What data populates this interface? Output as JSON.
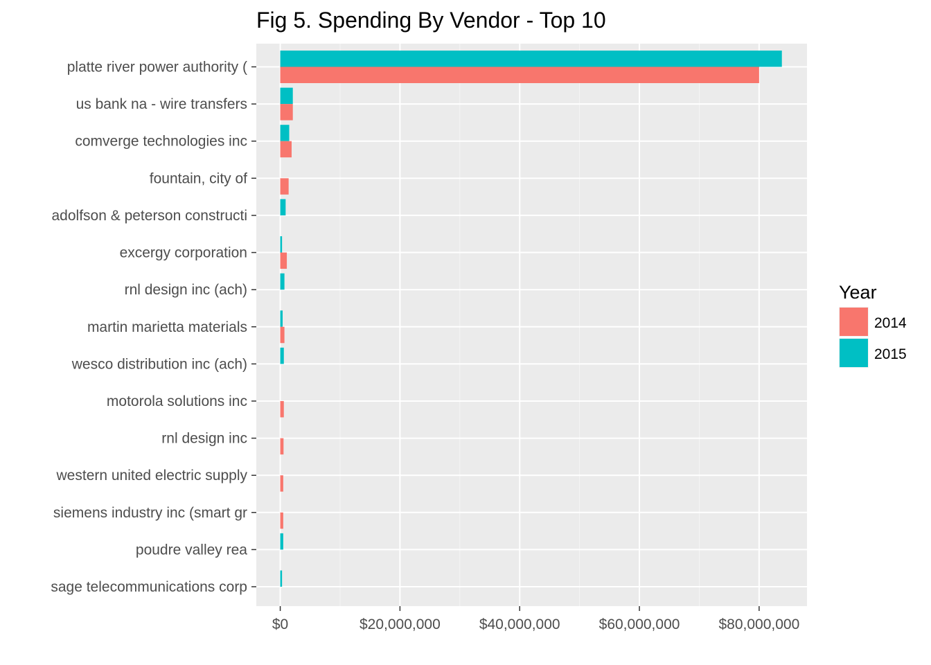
{
  "chart_data": {
    "type": "bar",
    "orientation": "horizontal",
    "title": "Fig 5. Spending By Vendor - Top 10",
    "xlabel": "",
    "ylabel": "",
    "xlim": [
      -4000000,
      88000000
    ],
    "x_ticks": [
      0,
      20000000,
      40000000,
      60000000,
      80000000
    ],
    "x_tick_labels": [
      "$0",
      "$20,000,000",
      "$40,000,000",
      "$60,000,000",
      "$80,000,000"
    ],
    "grid": true,
    "legend_position": "right",
    "legend_title": "Year",
    "categories": [
      "platte river power authority (",
      "us bank na - wire transfers",
      "comverge technologies inc",
      "fountain, city of",
      "adolfson & peterson constructi",
      "excergy corporation",
      "rnl design inc (ach)",
      "martin marietta materials",
      "wesco distribution inc (ach)",
      "motorola solutions inc",
      "rnl design inc",
      "western united electric supply",
      "siemens industry inc (smart gr",
      "poudre valley rea",
      "sage telecommunications corp"
    ],
    "series": [
      {
        "name": "2014",
        "color": "#F8766D",
        "values": [
          80000000,
          2100000,
          1900000,
          1400000,
          null,
          1100000,
          null,
          700000,
          null,
          600000,
          550000,
          500000,
          500000,
          null,
          null
        ]
      },
      {
        "name": "2015",
        "color": "#00BFC4",
        "values": [
          83800000,
          2100000,
          1500000,
          null,
          900000,
          300000,
          700000,
          400000,
          600000,
          null,
          null,
          null,
          null,
          500000,
          300000
        ]
      }
    ]
  }
}
